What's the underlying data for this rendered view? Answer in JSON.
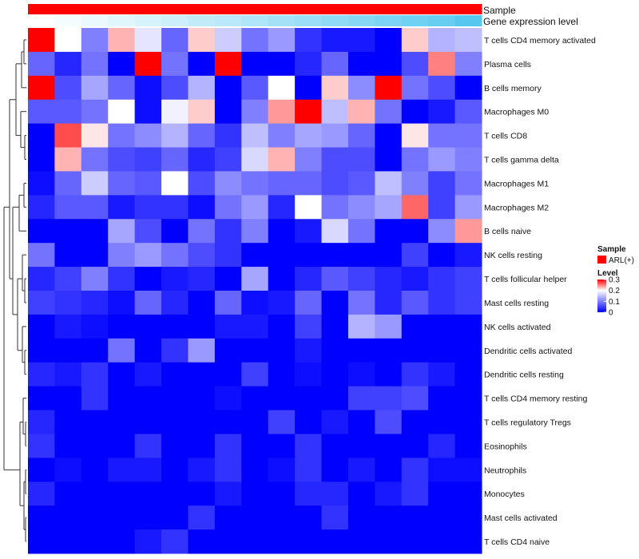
{
  "chart_data": {
    "type": "heatmap",
    "title": "",
    "annotations": {
      "sample_label": "Sample",
      "gene_label": "Gene expression level"
    },
    "rows": [
      "T cells CD4 memory activated",
      "Plasma cells",
      "B cells memory",
      "Macrophages M0",
      "T cells CD8",
      "T cells gamma delta",
      "Macrophages M1",
      "Macrophages M2",
      "B cells naive",
      "NK cells resting",
      "T cells follicular helper",
      "Mast cells resting",
      "NK cells activated",
      "Dendritic cells activated",
      "Dendritic cells resting",
      "T cells CD4 memory resting",
      "T cells regulatory  Tregs",
      "Eosinophils",
      "Neutrophils",
      "Monocytes",
      "Mast cells activated",
      "T cells CD4 naive"
    ],
    "values": [
      [
        0.3,
        0.2,
        0.1,
        0.23,
        0.18,
        0.08,
        0.22,
        0.16,
        0.09,
        0.12,
        0.04,
        0.02,
        0.02,
        0.0,
        0.22,
        0.14,
        0.15
      ],
      [
        0.08,
        0.03,
        0.09,
        0.0,
        0.3,
        0.09,
        0.0,
        0.3,
        0.0,
        0.0,
        0.03,
        0.08,
        0.0,
        0.0,
        0.06,
        0.25,
        0.1
      ],
      [
        0.3,
        0.06,
        0.13,
        0.08,
        0.01,
        0.06,
        0.14,
        0.0,
        0.07,
        0.2,
        0.0,
        0.22,
        0.11,
        0.3,
        0.09,
        0.06,
        0.0
      ],
      [
        0.07,
        0.07,
        0.09,
        0.2,
        0.01,
        0.19,
        0.22,
        0.0,
        0.1,
        0.24,
        0.3,
        0.15,
        0.23,
        0.09,
        0.0,
        0.02,
        0.07
      ],
      [
        0.0,
        0.27,
        0.21,
        0.09,
        0.11,
        0.14,
        0.08,
        0.04,
        0.15,
        0.1,
        0.13,
        0.12,
        0.08,
        0.0,
        0.21,
        0.09,
        0.09
      ],
      [
        0.0,
        0.23,
        0.09,
        0.06,
        0.05,
        0.08,
        0.03,
        0.05,
        0.17,
        0.23,
        0.1,
        0.06,
        0.06,
        0.0,
        0.09,
        0.12,
        0.1
      ],
      [
        0.01,
        0.08,
        0.16,
        0.08,
        0.07,
        0.2,
        0.06,
        0.11,
        0.09,
        0.08,
        0.08,
        0.06,
        0.07,
        0.15,
        0.1,
        0.05,
        0.09
      ],
      [
        0.03,
        0.07,
        0.07,
        0.02,
        0.04,
        0.04,
        0.01,
        0.09,
        0.12,
        0.03,
        0.2,
        0.09,
        0.11,
        0.13,
        0.26,
        0.05,
        0.12
      ],
      [
        0.0,
        0.0,
        0.0,
        0.13,
        0.06,
        0.0,
        0.09,
        0.04,
        0.1,
        0.0,
        0.02,
        0.17,
        0.09,
        0.0,
        0.0,
        0.11,
        0.24
      ],
      [
        0.09,
        0.0,
        0.0,
        0.1,
        0.12,
        0.09,
        0.06,
        0.04,
        0.0,
        0.0,
        0.0,
        0.0,
        0.0,
        0.0,
        0.05,
        0.0,
        0.02
      ],
      [
        0.03,
        0.05,
        0.1,
        0.04,
        0.0,
        0.02,
        0.03,
        0.0,
        0.13,
        0.0,
        0.03,
        0.07,
        0.05,
        0.03,
        0.02,
        0.04,
        0.05
      ],
      [
        0.05,
        0.04,
        0.03,
        0.01,
        0.08,
        0.03,
        0.0,
        0.08,
        0.01,
        0.02,
        0.08,
        0.0,
        0.09,
        0.03,
        0.07,
        0.04,
        0.05
      ],
      [
        0.0,
        0.02,
        0.01,
        0.0,
        0.0,
        0.0,
        0.0,
        0.02,
        0.02,
        0.0,
        0.05,
        0.0,
        0.14,
        0.12,
        0.0,
        0.0,
        0.0
      ],
      [
        0.0,
        0.0,
        0.0,
        0.09,
        0.0,
        0.04,
        0.12,
        0.0,
        0.0,
        0.0,
        0.02,
        0.0,
        0.0,
        0.0,
        0.0,
        0.0,
        0.0
      ],
      [
        0.03,
        0.02,
        0.04,
        0.0,
        0.02,
        0.0,
        0.0,
        0.0,
        0.05,
        0.0,
        0.01,
        0.0,
        0.01,
        0.0,
        0.04,
        0.02,
        0.0
      ],
      [
        0.0,
        0.0,
        0.04,
        0.0,
        0.0,
        0.0,
        0.0,
        0.01,
        0.0,
        0.0,
        0.0,
        0.0,
        0.05,
        0.05,
        0.06,
        0.0,
        0.0
      ],
      [
        0.03,
        0.0,
        0.0,
        0.0,
        0.0,
        0.0,
        0.0,
        0.0,
        0.0,
        0.05,
        0.0,
        0.02,
        0.0,
        0.06,
        0.0,
        0.0,
        0.0
      ],
      [
        0.04,
        0.0,
        0.0,
        0.0,
        0.04,
        0.0,
        0.0,
        0.04,
        0.0,
        0.0,
        0.04,
        0.0,
        0.0,
        0.0,
        0.0,
        0.03,
        0.0
      ],
      [
        0.0,
        0.01,
        0.0,
        0.02,
        0.02,
        0.0,
        0.02,
        0.04,
        0.0,
        0.01,
        0.04,
        0.0,
        0.02,
        0.0,
        0.04,
        0.01,
        0.01
      ],
      [
        0.03,
        0.0,
        0.0,
        0.0,
        0.0,
        0.0,
        0.0,
        0.02,
        0.0,
        0.0,
        0.03,
        0.03,
        0.0,
        0.02,
        0.04,
        0.0,
        0.0
      ],
      [
        0.0,
        0.0,
        0.0,
        0.0,
        0.0,
        0.0,
        0.04,
        0.0,
        0.0,
        0.0,
        0.0,
        0.04,
        0.0,
        0.0,
        0.0,
        0.0,
        0.0
      ],
      [
        0.0,
        0.0,
        0.0,
        0.0,
        0.02,
        0.04,
        0.0,
        0.0,
        0.0,
        0.0,
        0.0,
        0.0,
        0.0,
        0.0,
        0.0,
        0.0,
        0.0
      ]
    ],
    "gene_expression": [
      0.0,
      0.06,
      0.12,
      0.18,
      0.24,
      0.3,
      0.36,
      0.42,
      0.48,
      0.54,
      0.6,
      0.66,
      0.72,
      0.78,
      0.84,
      0.9,
      1.0
    ],
    "sample_color": "#ff0000",
    "gene_color_low": "#ffffff",
    "gene_color_high": "#56c8f0",
    "color_scale": {
      "low": "#0000ff",
      "mid": "#ffffff",
      "high": "#ff0000",
      "min": 0,
      "mid_value": 0.2,
      "max": 0.3
    },
    "legend": {
      "sample_title": "Sample",
      "sample_entry": "ARL(+)",
      "level_title": "Level",
      "level_ticks": [
        "0.3",
        "0.2",
        "0.1",
        "0"
      ],
      "level_tick_values": [
        0.3,
        0.2,
        0.1,
        0
      ]
    },
    "dendrogram_side": "left"
  }
}
